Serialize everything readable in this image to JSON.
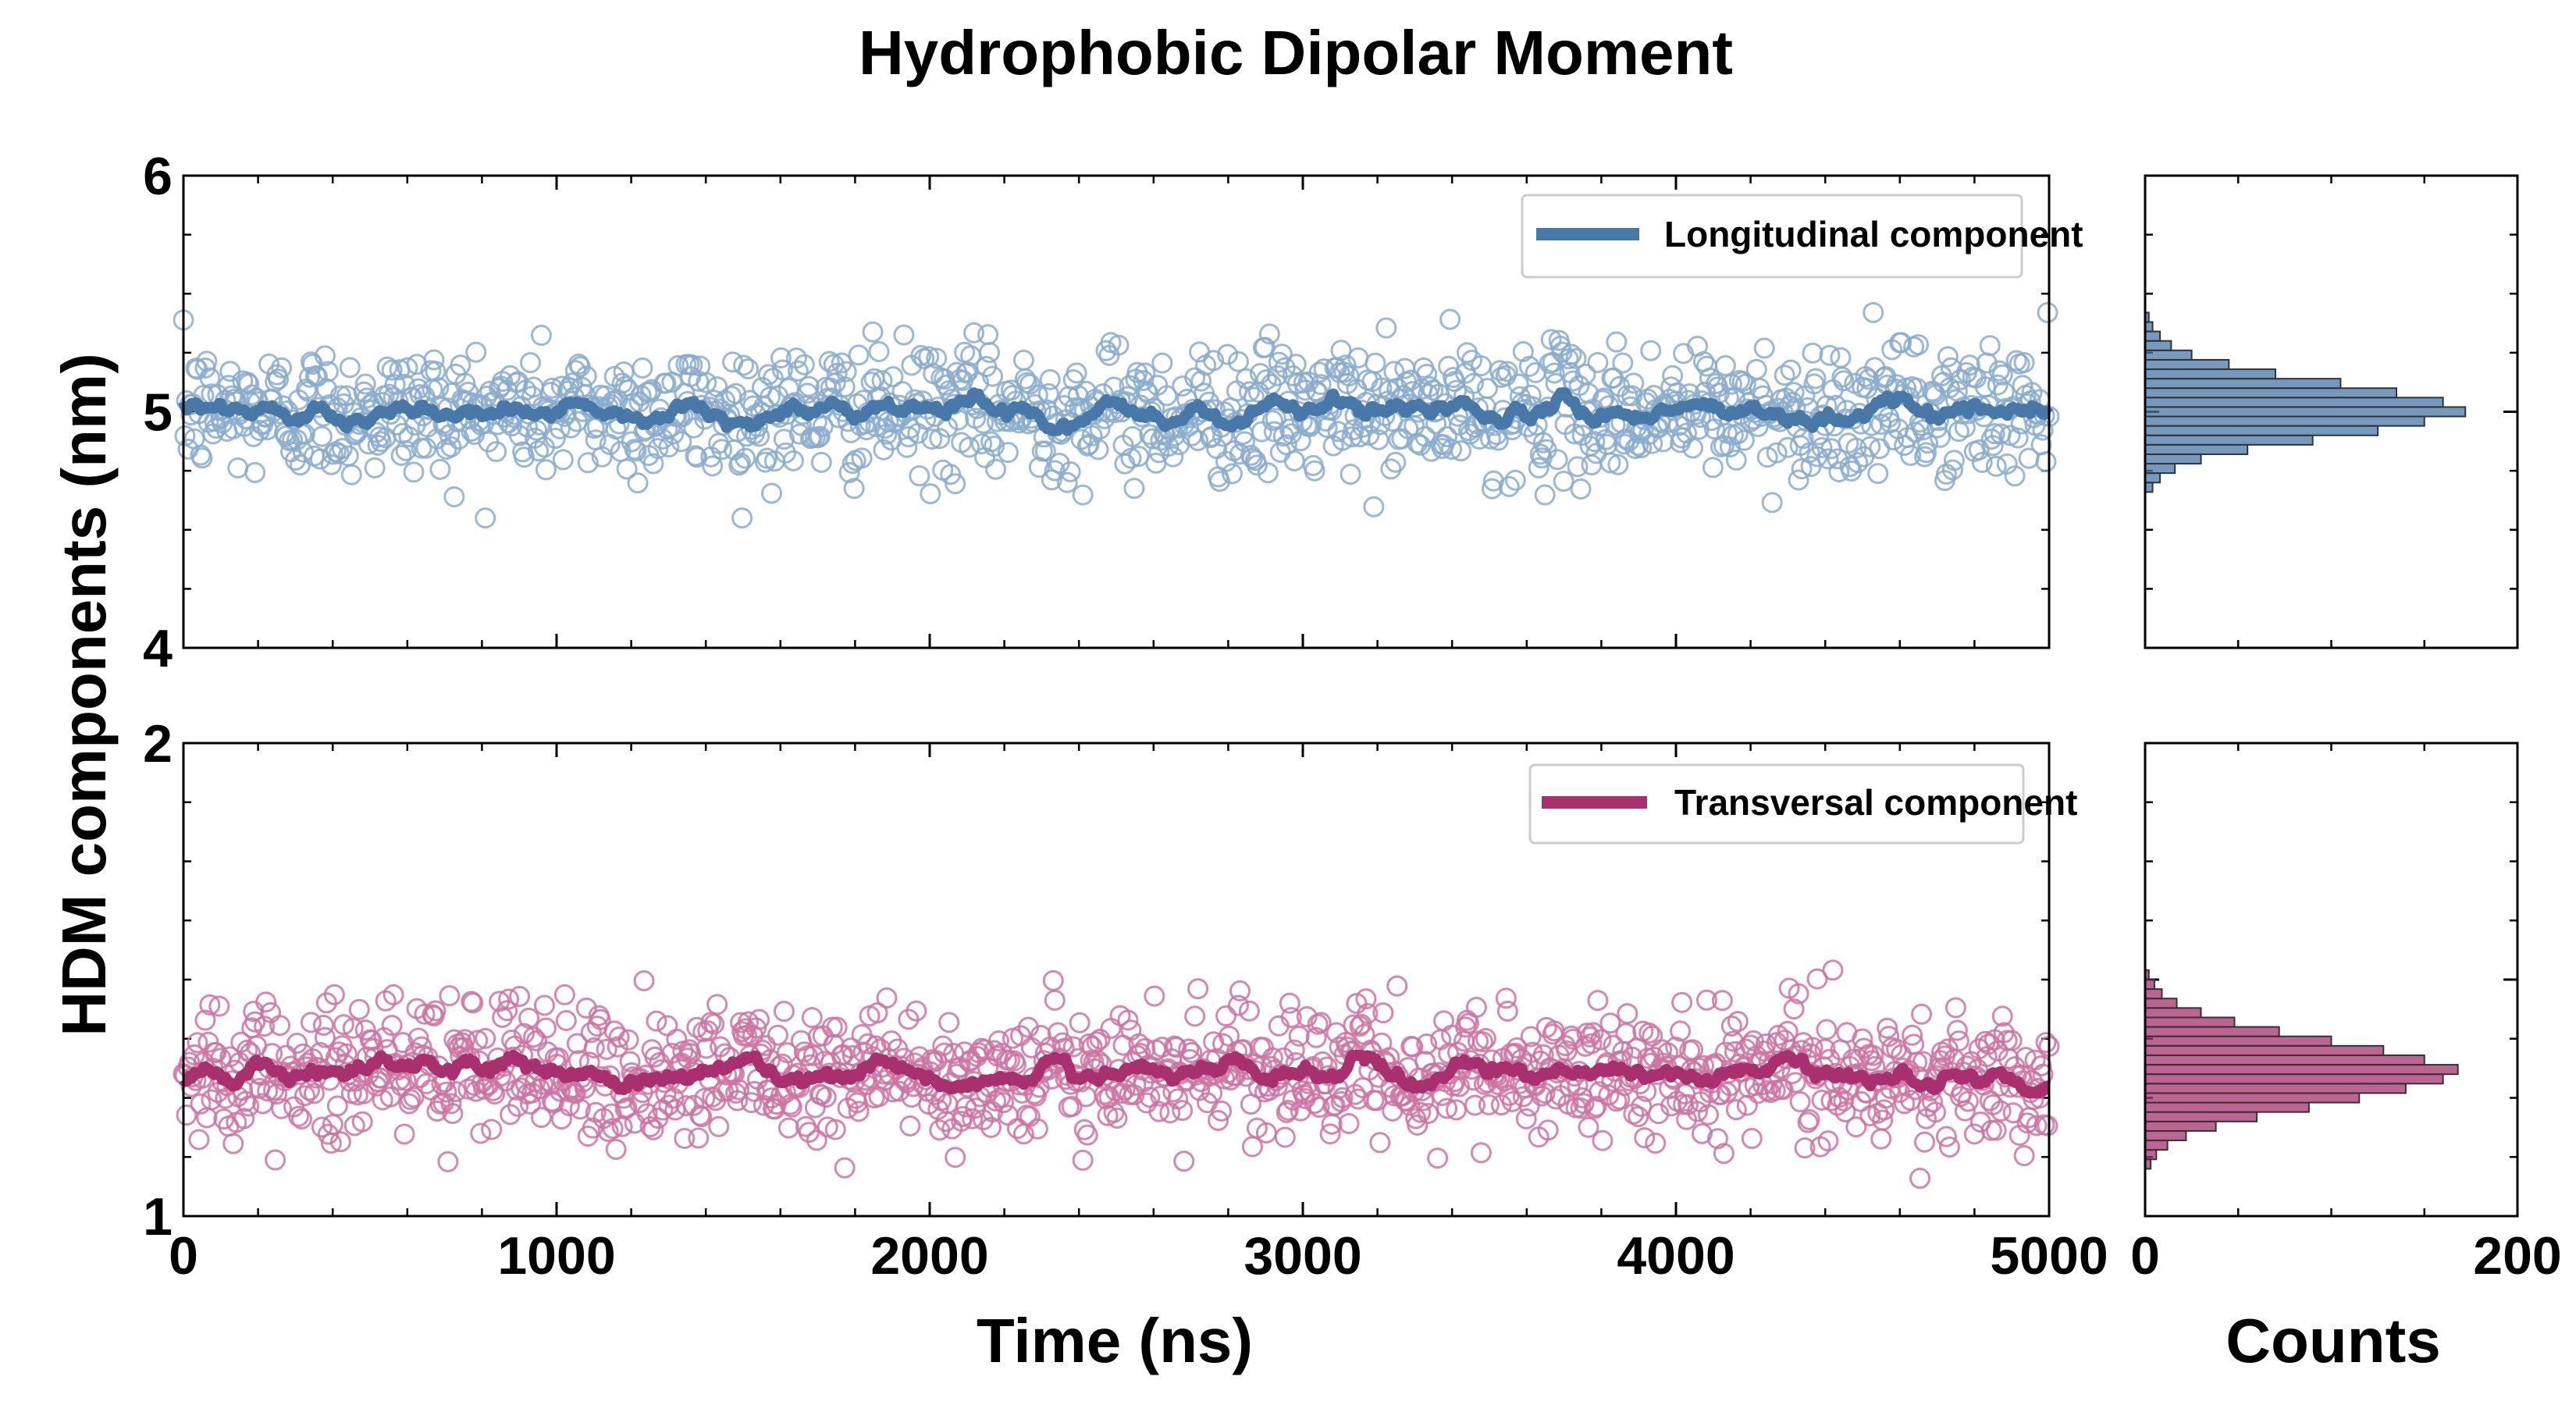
{
  "figure": {
    "title": "Hydrophobic Dipolar Moment",
    "ylabel": "HDM components (nm)",
    "xlabel": "Time (ns)",
    "hist_xlabel": "Counts"
  },
  "colors": {
    "longitudinal": "#4878a8",
    "longitudinal_marker": "#8aaccc",
    "transversal": "#a8306e",
    "transversal_marker": "#cc74a2",
    "hist_edge": "#333333"
  },
  "chart_data": [
    {
      "type": "scatter",
      "panel": "top-time-series",
      "title": "Hydrophobic Dipolar Moment",
      "xlabel": "Time (ns)",
      "ylabel": "HDM components (nm)",
      "xlim": [
        0,
        5000
      ],
      "ylim": [
        4,
        6
      ],
      "x_ticks": [
        0,
        1000,
        2000,
        3000,
        4000,
        5000
      ],
      "y_ticks": [
        4,
        5,
        6
      ],
      "y_tick_labels": [
        "4",
        "5",
        "6"
      ],
      "legend_position": "top-right",
      "series": [
        {
          "name": "Longitudinal component",
          "kind": "scatter+running-average",
          "n_points": 1200,
          "mean": 5.0,
          "std": 0.14,
          "min": 4.55,
          "max": 5.42,
          "running_average_range": [
            4.92,
            5.08
          ]
        }
      ]
    },
    {
      "type": "scatter",
      "panel": "bottom-time-series",
      "xlabel": "Time (ns)",
      "xlim": [
        0,
        5000
      ],
      "ylim": [
        1,
        2
      ],
      "x_ticks": [
        0,
        1000,
        2000,
        3000,
        4000,
        5000
      ],
      "x_tick_labels": [
        "0",
        "1000",
        "2000",
        "3000",
        "4000",
        "5000"
      ],
      "y_ticks": [
        1,
        2
      ],
      "y_tick_labels": [
        "1",
        "2"
      ],
      "legend_position": "top-right",
      "series": [
        {
          "name": "Transversal component",
          "kind": "scatter+running-average",
          "n_points": 1200,
          "mean": 1.3,
          "std": 0.07,
          "min": 1.08,
          "max": 1.52,
          "running_average_range": [
            1.26,
            1.34
          ]
        }
      ]
    },
    {
      "type": "bar",
      "orientation": "horizontal",
      "panel": "top-histogram",
      "xlabel": "Counts",
      "xlim": [
        0,
        200
      ],
      "ylim": [
        4,
        6
      ],
      "bin_centers": [
        4.68,
        4.72,
        4.76,
        4.8,
        4.84,
        4.88,
        4.92,
        4.96,
        5.0,
        5.04,
        5.08,
        5.12,
        5.16,
        5.2,
        5.24,
        5.28,
        5.32,
        5.36,
        5.4
      ],
      "values": [
        4,
        8,
        16,
        30,
        55,
        90,
        125,
        150,
        172,
        160,
        135,
        105,
        70,
        45,
        25,
        14,
        8,
        4,
        2
      ]
    },
    {
      "type": "bar",
      "orientation": "horizontal",
      "panel": "bottom-histogram",
      "xlabel": "Counts",
      "xlim": [
        0,
        200
      ],
      "x_ticks": [
        0,
        200
      ],
      "x_tick_labels": [
        "0",
        "200"
      ],
      "ylim": [
        1,
        2
      ],
      "bin_centers": [
        1.11,
        1.13,
        1.15,
        1.17,
        1.19,
        1.21,
        1.23,
        1.25,
        1.27,
        1.29,
        1.31,
        1.33,
        1.35,
        1.37,
        1.39,
        1.41,
        1.43,
        1.45,
        1.47,
        1.49,
        1.51
      ],
      "values": [
        3,
        6,
        12,
        22,
        38,
        60,
        88,
        115,
        140,
        160,
        168,
        150,
        128,
        100,
        72,
        48,
        30,
        17,
        9,
        5,
        2
      ]
    }
  ]
}
